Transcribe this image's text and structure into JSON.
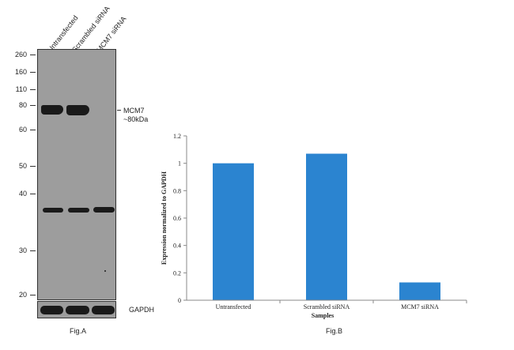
{
  "blot": {
    "lane_labels": [
      "Untransfected",
      "Scrambled siRNA",
      "MCM7 siRNA"
    ],
    "mw_markers": [
      "260",
      "160",
      "110",
      "80",
      "60",
      "50",
      "40",
      "30",
      "20"
    ],
    "target_label_line1": "MCM7",
    "target_label_line2": "~80kDa",
    "loading_control_label": "GAPDH",
    "band_color": "#1a1a1a",
    "membrane_color": "#9d9d9d"
  },
  "fig_a_label": "Fig.A",
  "fig_b_label": "Fig.B",
  "chart_data": {
    "type": "bar",
    "categories": [
      "Untransfected",
      "Scrambled siRNA",
      "MCM7 siRNA"
    ],
    "values": [
      1.0,
      1.07,
      0.13
    ],
    "xlabel": "Samples",
    "ylabel": "Expression normalized to GAPDH",
    "ylim": [
      0,
      1.2
    ],
    "yticks": [
      "0",
      "0.2",
      "0.4",
      "0.6",
      "0.8",
      "1",
      "1.2"
    ],
    "grid": false,
    "bar_color": "#2b84d0"
  }
}
